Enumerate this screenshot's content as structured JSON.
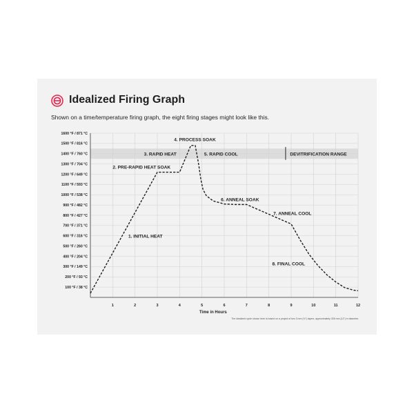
{
  "header": {
    "title": "Idealized Firing Graph",
    "subtitle": "Shown on a time/temperature firing graph, the eight firing stages might look like this.",
    "footnote": "The idealized cycle shown here is based on a project of two 3 mm (⅛\") layers, approximately 305 mm (12\") in diameter."
  },
  "colors": {
    "card": "#f2f2f2",
    "grid": "#d2d2d2",
    "band": "#dcdcdc",
    "curve": "#1e1e1e",
    "logo": "#e2264d"
  },
  "logo": {
    "icon": "bullseye-logo-icon"
  },
  "chart_data": {
    "type": "line",
    "xlabel": "Time in Hours",
    "ylabel": "",
    "xlim": [
      0,
      12
    ],
    "ylim": [
      0,
      1600
    ],
    "grid": true,
    "line_style": "dashed",
    "x_ticks": [
      {
        "value": 1,
        "label": "1"
      },
      {
        "value": 2,
        "label": "2"
      },
      {
        "value": 3,
        "label": "3"
      },
      {
        "value": 4,
        "label": "4"
      },
      {
        "value": 5,
        "label": "5"
      },
      {
        "value": 6,
        "label": "6"
      },
      {
        "value": 7,
        "label": "7"
      },
      {
        "value": 8,
        "label": "8"
      },
      {
        "value": 9,
        "label": "9"
      },
      {
        "value": 10,
        "label": "10"
      },
      {
        "value": 11,
        "label": "11"
      },
      {
        "value": 12,
        "label": "12"
      }
    ],
    "y_ticks": [
      {
        "value": 100,
        "label": "100 °F / 38 °C"
      },
      {
        "value": 200,
        "label": "200 °F / 93 °C"
      },
      {
        "value": 300,
        "label": "300 °F / 149 °C"
      },
      {
        "value": 400,
        "label": "400 °F / 204 °C"
      },
      {
        "value": 500,
        "label": "500 °F / 260 °C"
      },
      {
        "value": 600,
        "label": "600 °F / 316 °C"
      },
      {
        "value": 700,
        "label": "700 °F / 371 °C"
      },
      {
        "value": 800,
        "label": "800 °F / 427 °C"
      },
      {
        "value": 900,
        "label": "900 °F / 482 °C"
      },
      {
        "value": 1000,
        "label": "1000 °F / 538 °C"
      },
      {
        "value": 1100,
        "label": "1100 °F / 593 °C"
      },
      {
        "value": 1200,
        "label": "1200 °F / 649 °C"
      },
      {
        "value": 1300,
        "label": "1300 °F / 704 °C"
      },
      {
        "value": 1400,
        "label": "1400 °F / 760 °C"
      },
      {
        "value": 1500,
        "label": "1500 °F / 816 °C"
      },
      {
        "value": 1600,
        "label": "1600 °F / 871 °C"
      }
    ],
    "band": {
      "y_from": 1350,
      "y_to": 1450,
      "x_from": 0,
      "x_to": 12
    },
    "divider_x": 8.75,
    "series": [
      {
        "points": [
          [
            0.0,
            40
          ],
          [
            3.0,
            1220
          ],
          [
            4.0,
            1220
          ],
          [
            4.5,
            1480
          ],
          [
            4.7,
            1480
          ],
          [
            4.85,
            1300
          ],
          [
            4.95,
            1150
          ],
          [
            5.05,
            1050
          ],
          [
            5.2,
            990
          ],
          [
            5.5,
            940
          ],
          [
            6.0,
            910
          ],
          [
            6.5,
            905
          ],
          [
            7.0,
            905
          ],
          [
            9.0,
            715
          ],
          [
            9.4,
            560
          ],
          [
            9.8,
            420
          ],
          [
            10.2,
            310
          ],
          [
            10.6,
            220
          ],
          [
            11.0,
            150
          ],
          [
            11.4,
            95
          ],
          [
            11.8,
            70
          ],
          [
            12.0,
            65
          ]
        ]
      }
    ],
    "annotations": [
      {
        "text": "1. INITIAL HEAT",
        "x": 1.7,
        "y": 600
      },
      {
        "text": "2. PRE-RAPID HEAT SOAK",
        "x": 1.0,
        "y": 1270
      },
      {
        "text": "3. RAPID HEAT",
        "x": 2.4,
        "y": 1400
      },
      {
        "text": "4. PROCESS SOAK",
        "x": 3.75,
        "y": 1540
      },
      {
        "text": "5. RAPID COOL",
        "x": 5.1,
        "y": 1400
      },
      {
        "text": "DEVITRIFICATION RANGE",
        "x": 8.95,
        "y": 1400
      },
      {
        "text": "6. ANNEAL SOAK",
        "x": 5.85,
        "y": 955
      },
      {
        "text": "7. ANNEAL COOL",
        "x": 8.2,
        "y": 820
      },
      {
        "text": "8. FINAL COOL",
        "x": 8.15,
        "y": 330
      }
    ]
  }
}
